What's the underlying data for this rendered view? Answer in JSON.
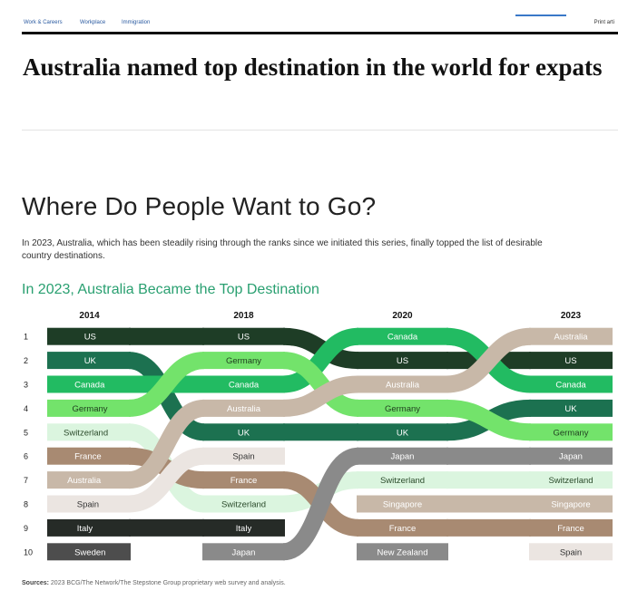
{
  "nav": {
    "links": [
      "Work & Careers",
      "Workplace",
      "Immigration"
    ],
    "print_label": "Print arti"
  },
  "article": {
    "headline": "Australia named top destination in the world for expats"
  },
  "section": {
    "title": "Where Do People Want to Go?",
    "intro": "In 2023, Australia, which has been steadily rising through the ranks since we initiated this series, finally topped the list of desirable country destinations."
  },
  "chart_data": {
    "type": "bump",
    "title": "In 2023, Australia Became the Top Destination",
    "years": [
      "2014",
      "2018",
      "2020",
      "2023"
    ],
    "ranks": [
      "1",
      "2",
      "3",
      "4",
      "5",
      "6",
      "7",
      "8",
      "9",
      "10"
    ],
    "series": [
      {
        "name": "US",
        "ranks": [
          1,
          1,
          2,
          2
        ],
        "color": "#1e3d26",
        "text": "#ffffff"
      },
      {
        "name": "UK",
        "ranks": [
          2,
          5,
          5,
          4
        ],
        "color": "#1c7150",
        "text": "#ffffff"
      },
      {
        "name": "Canada",
        "ranks": [
          3,
          3,
          1,
          3
        ],
        "color": "#22bb62",
        "text": "#ffffff"
      },
      {
        "name": "Germany",
        "ranks": [
          4,
          2,
          4,
          5
        ],
        "color": "#73e36b",
        "text": "#1f3d1f"
      },
      {
        "name": "Switzerland",
        "ranks": [
          5,
          8,
          7,
          7
        ],
        "color": "#dbf5df",
        "text": "#2a4a2a"
      },
      {
        "name": "France",
        "ranks": [
          6,
          7,
          9,
          9
        ],
        "color": "#a88a72",
        "text": "#ffffff"
      },
      {
        "name": "Australia",
        "ranks": [
          7,
          4,
          3,
          1
        ],
        "color": "#c8b8a8",
        "text": "#ffffff"
      },
      {
        "name": "Spain",
        "ranks": [
          8,
          6,
          null,
          10
        ],
        "color": "#ebe5e1",
        "text": "#333333"
      },
      {
        "name": "Italy",
        "ranks": [
          9,
          9,
          null,
          null
        ],
        "color": "#262b27",
        "text": "#ffffff"
      },
      {
        "name": "Sweden",
        "ranks": [
          10,
          null,
          null,
          null
        ],
        "color": "#4d4d4d",
        "text": "#ffffff"
      },
      {
        "name": "Japan",
        "ranks": [
          null,
          10,
          6,
          6
        ],
        "color": "#8a8a8a",
        "text": "#ffffff"
      },
      {
        "name": "Singapore",
        "ranks": [
          null,
          null,
          8,
          8
        ],
        "color": "#c8b8a8",
        "text": "#ffffff"
      },
      {
        "name": "New Zealand",
        "ranks": [
          null,
          null,
          10,
          null
        ],
        "color": "#8a8a8a",
        "text": "#ffffff"
      }
    ],
    "extra_series": []
  },
  "footer": {
    "sources_label": "Sources:",
    "sources_text": " 2023 BCG/The Network/The Stepstone Group proprietary web survey and analysis."
  }
}
